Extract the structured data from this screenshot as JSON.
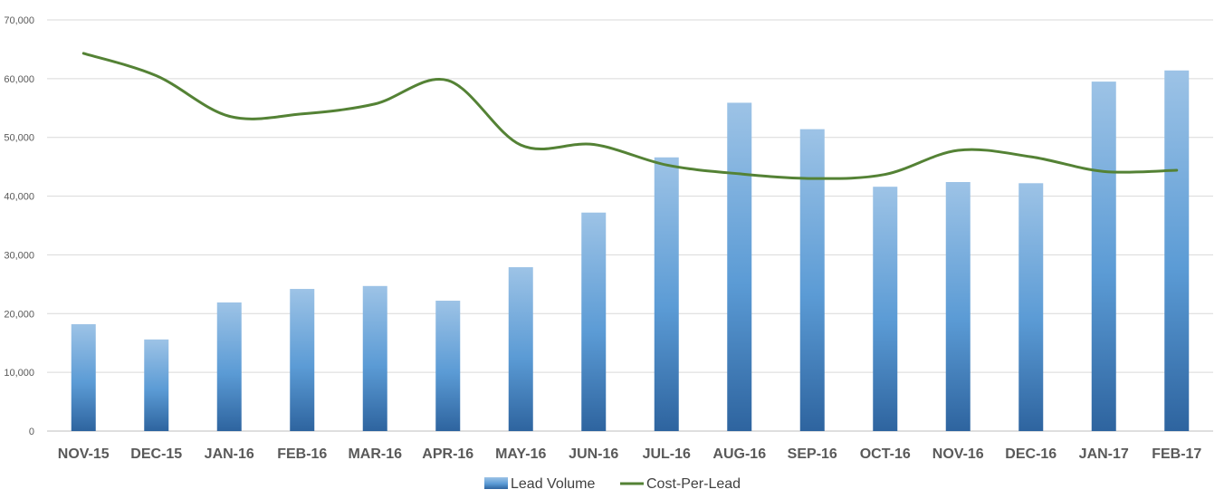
{
  "chart_data": {
    "type": "bar",
    "categories": [
      "NOV-15",
      "DEC-15",
      "JAN-16",
      "FEB-16",
      "MAR-16",
      "APR-16",
      "MAY-16",
      "JUN-16",
      "JUL-16",
      "AUG-16",
      "SEP-16",
      "OCT-16",
      "NOV-16",
      "DEC-16",
      "JAN-17",
      "FEB-17"
    ],
    "series": [
      {
        "name": "Lead Volume",
        "type": "bar",
        "color": "#5b9bd5",
        "values": [
          18200,
          15600,
          21900,
          24200,
          24700,
          22200,
          27900,
          37200,
          46600,
          55900,
          51400,
          41600,
          42400,
          42200,
          59500,
          61400
        ]
      },
      {
        "name": "Cost-Per-Lead",
        "type": "line",
        "color": "#548235",
        "values": [
          64300,
          60500,
          53600,
          54000,
          55700,
          59700,
          48700,
          48800,
          45300,
          43800,
          43000,
          43700,
          47800,
          46700,
          44200,
          44400
        ]
      }
    ],
    "yticks": [
      "0",
      "10,000",
      "20,000",
      "30,000",
      "40,000",
      "50,000",
      "60,000",
      "70,000"
    ],
    "ylim": [
      0,
      70000
    ],
    "grid": true,
    "legend": "bottom-center"
  }
}
